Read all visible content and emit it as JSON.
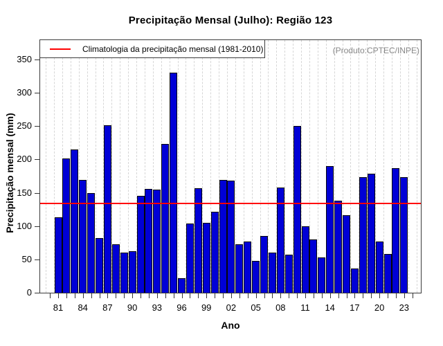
{
  "chart_data": {
    "type": "bar",
    "title": "Precipitação Mensal (Julho): Região 123",
    "xlabel": "Ano",
    "ylabel": "Precipitação mensal (mm)",
    "annotation": "(Produto:CPTEC/INPE)",
    "ylim": [
      0,
      380
    ],
    "yticks": [
      0,
      50,
      100,
      150,
      200,
      250,
      300,
      350
    ],
    "grid": "vertical-dashed-yearly",
    "legend_position": "top-left",
    "bar_color": "#0000d6",
    "bar_border_color": "#06060a",
    "categories": [
      1981,
      1982,
      1983,
      1984,
      1985,
      1986,
      1987,
      1988,
      1989,
      1990,
      1991,
      1992,
      1993,
      1994,
      1995,
      1996,
      1997,
      1998,
      1999,
      2000,
      2001,
      2002,
      2003,
      2004,
      2005,
      2006,
      2007,
      2008,
      2009,
      2010,
      2011,
      2012,
      2013,
      2014,
      2015,
      2016,
      2017,
      2018,
      2019,
      2020,
      2021,
      2022,
      2023
    ],
    "values": [
      113,
      201,
      215,
      169,
      150,
      82,
      251,
      73,
      60,
      62,
      145,
      156,
      155,
      223,
      330,
      22,
      104,
      157,
      105,
      121,
      169,
      168,
      73,
      77,
      48,
      85,
      60,
      158,
      57,
      250,
      100,
      80,
      53,
      190,
      138,
      116,
      36,
      173,
      179,
      77,
      58,
      187,
      173
    ],
    "x_tick_labeled_years": [
      1981,
      1984,
      1987,
      1990,
      1993,
      1996,
      1999,
      2002,
      2005,
      2008,
      2011,
      2014,
      2017,
      2020,
      2023
    ],
    "x_tick_labels": [
      "81",
      "84",
      "87",
      "90",
      "93",
      "96",
      "99",
      "02",
      "05",
      "08",
      "11",
      "14",
      "17",
      "20",
      "23"
    ],
    "x_minor_ticks_range": [
      1980,
      2024
    ],
    "reference_line": {
      "value": 135,
      "color": "#ff0000",
      "label": "Climatologia da precipitação mensal (1981-2010)"
    }
  }
}
